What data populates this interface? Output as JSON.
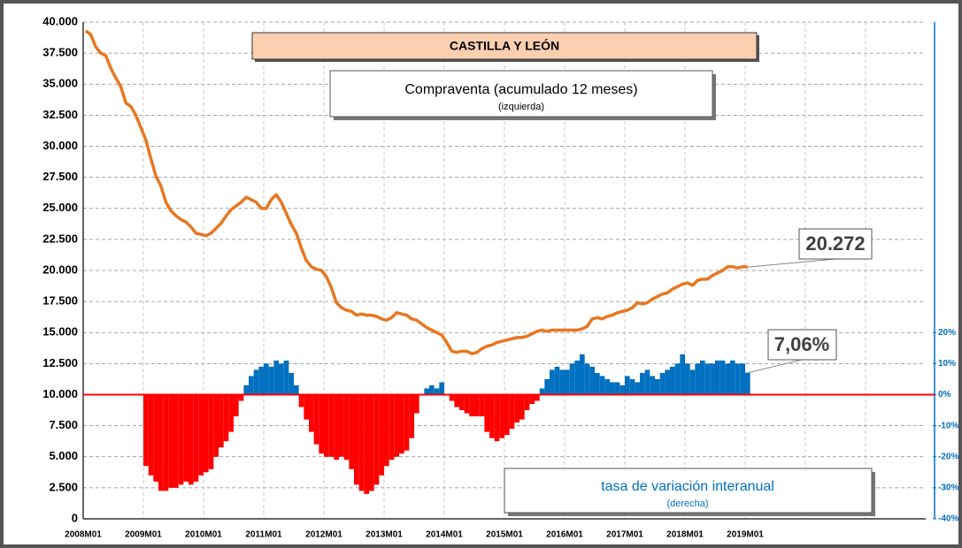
{
  "chart_data": {
    "type": "bar-line",
    "title": "CASTILLA Y LEÓN",
    "annotations": [
      "Compraventa  (acumulado 12 meses)",
      "(izquierda)",
      "tasa de variación interanual",
      "(derecha)",
      "20.272",
      "7,06%"
    ],
    "categories": [
      "2008M01",
      null,
      null,
      null,
      null,
      null,
      null,
      null,
      null,
      null,
      null,
      null,
      "2009M01",
      null,
      null,
      null,
      null,
      null,
      null,
      null,
      null,
      null,
      null,
      null,
      "2010M01",
      null,
      null,
      null,
      null,
      null,
      null,
      null,
      null,
      null,
      null,
      null,
      "2011M01",
      null,
      null,
      null,
      null,
      null,
      null,
      null,
      null,
      null,
      null,
      null,
      "2012M01",
      null,
      null,
      null,
      null,
      null,
      null,
      null,
      null,
      null,
      null,
      null,
      "2013M01",
      null,
      null,
      null,
      null,
      null,
      null,
      null,
      null,
      null,
      null,
      null,
      "2014M01",
      null,
      null,
      null,
      null,
      null,
      null,
      null,
      null,
      null,
      null,
      null,
      "2015M01",
      null,
      null,
      null,
      null,
      null,
      null,
      null,
      null,
      null,
      null,
      null,
      "2016M01",
      null,
      null,
      null,
      null,
      null,
      null,
      null,
      null,
      null,
      null,
      null,
      "2017M01",
      null,
      null,
      null,
      null,
      null,
      null,
      null,
      null,
      null,
      null,
      null,
      "2018M01",
      null,
      null,
      null,
      null,
      null,
      null,
      null,
      null,
      null,
      null,
      null,
      "2019M01",
      null,
      null,
      null,
      null,
      null,
      null,
      null,
      null,
      null,
      null,
      null,
      null,
      null,
      null,
      null,
      null,
      null,
      null,
      null,
      null,
      null,
      null,
      null,
      null,
      null,
      null,
      null,
      null,
      null,
      null,
      null,
      null,
      null,
      null,
      null
    ],
    "series": [
      {
        "name": "Compraventa",
        "kind": "line",
        "color": "#e87722",
        "values": [
          39300,
          39000,
          38000,
          37500,
          37300,
          36300,
          35500,
          34800,
          33500,
          33200,
          32500,
          31500,
          30500,
          29000,
          27600,
          26800,
          25500,
          24800,
          24400,
          24100,
          23900,
          23500,
          23000,
          22900,
          22800,
          23000,
          23400,
          23800,
          24400,
          24900,
          25200,
          25500,
          25900,
          25700,
          25500,
          25000,
          25000,
          25700,
          26100,
          25500,
          24600,
          23700,
          23000,
          21800,
          20800,
          20300,
          20100,
          20000,
          19500,
          18600,
          17400,
          17000,
          16800,
          16700,
          16400,
          16500,
          16400,
          16400,
          16300,
          16100,
          16000,
          16200,
          16600,
          16500,
          16400,
          16100,
          16000,
          15700,
          15400,
          15200,
          15000,
          14800,
          14200,
          13500,
          13400,
          13500,
          13500,
          13300,
          13400,
          13700,
          13900,
          14000,
          14200,
          14300,
          14400,
          14500,
          14600,
          14600,
          14700,
          14900,
          15100,
          15200,
          15100,
          15200,
          15200,
          15200,
          15200,
          15200,
          15200,
          15300,
          15500,
          16100,
          16200,
          16100,
          16300,
          16400,
          16600,
          16700,
          16800,
          17000,
          17400,
          17300,
          17400,
          17700,
          17900,
          18100,
          18200,
          18500,
          18700,
          18900,
          19000,
          18800,
          19200,
          19300,
          19300,
          19600,
          19800,
          20000,
          20300,
          20300,
          20200,
          20300,
          20272,
          null,
          null,
          null,
          null,
          null,
          null,
          null,
          null,
          null,
          null,
          null,
          null,
          null,
          null,
          null,
          null,
          null,
          null,
          null,
          null,
          null,
          null,
          null,
          null,
          null,
          null,
          null,
          null,
          null,
          null,
          null,
          null,
          null,
          null,
          null
        ]
      },
      {
        "name": "tasa de variación interanual",
        "kind": "bar",
        "axis": "y2",
        "color": "#0070c0",
        "negative_color": "#ff0000",
        "values": [
          null,
          null,
          null,
          null,
          null,
          null,
          null,
          null,
          null,
          null,
          null,
          null,
          -23,
          -26,
          -28,
          -31,
          -31,
          -30,
          -30,
          -29,
          -28,
          -29,
          -28,
          -26,
          -25,
          -24,
          -20,
          -17,
          -15,
          -12,
          -7,
          -2,
          3,
          6,
          8,
          9,
          10,
          9,
          11,
          10,
          11,
          7,
          3,
          -4,
          -8,
          -12,
          -16,
          -19,
          -20,
          -20,
          -21,
          -20,
          -21,
          -24,
          -29,
          -31,
          -32,
          -31,
          -29,
          -26,
          -23,
          -21,
          -20,
          -19,
          -18,
          -14,
          -6,
          0,
          2,
          3,
          2,
          4,
          0,
          -2,
          -4,
          -5,
          -6,
          -7,
          -7,
          -7,
          -12,
          -14,
          -15,
          -14,
          -13,
          -11,
          -9,
          -8,
          -5,
          -3,
          -2,
          2,
          5,
          8,
          9,
          8,
          8,
          10,
          11,
          13,
          10,
          9,
          7,
          6,
          5,
          4,
          4,
          3,
          6,
          5,
          4,
          7,
          8,
          6,
          5,
          7,
          8,
          9,
          10,
          13,
          10,
          8,
          10,
          11,
          10,
          10,
          11,
          11,
          10,
          11,
          10,
          10,
          7.06,
          null,
          null,
          null,
          null,
          null,
          null,
          null,
          null,
          null,
          null,
          null,
          null,
          null,
          null,
          null,
          null,
          null,
          null,
          null,
          null,
          null,
          null,
          null,
          null,
          null,
          null,
          null,
          null,
          null,
          null,
          null,
          null,
          null,
          null,
          null
        ]
      }
    ],
    "ylim": [
      0,
      40000
    ],
    "yticks": [
      0,
      {
        "value": 2500,
        "label": "2.500"
      },
      {
        "value": 5000,
        "label": "5.000"
      },
      {
        "value": 7500,
        "label": "7.500"
      },
      {
        "value": 10000,
        "label": "10.000"
      },
      {
        "value": 12500,
        "label": "12.500"
      },
      {
        "value": 15000,
        "label": "15.000"
      },
      {
        "value": 17500,
        "label": "17.500"
      },
      {
        "value": 20000,
        "label": "20.000"
      },
      {
        "value": 22500,
        "label": "22.500"
      },
      {
        "value": 25000,
        "label": "25.000"
      },
      {
        "value": 27500,
        "label": "27.500"
      },
      {
        "value": 30000,
        "label": "30.000"
      },
      {
        "value": 32500,
        "label": "32.500"
      },
      {
        "value": 35000,
        "label": "35.000"
      },
      {
        "value": 37500,
        "label": "37.500"
      },
      {
        "value": 40000,
        "label": "40.000"
      }
    ],
    "y2lim": [
      -40,
      120
    ],
    "y2ticks": [
      {
        "value": -40,
        "label": "-40%"
      },
      {
        "value": -30,
        "label": "-30%"
      },
      {
        "value": -20,
        "label": "-20%"
      },
      {
        "value": -10,
        "label": "-10%"
      },
      {
        "value": 0,
        "label": "0%"
      },
      {
        "value": 10,
        "label": "10%"
      },
      {
        "value": 20,
        "label": "20%"
      }
    ],
    "grid": true
  }
}
